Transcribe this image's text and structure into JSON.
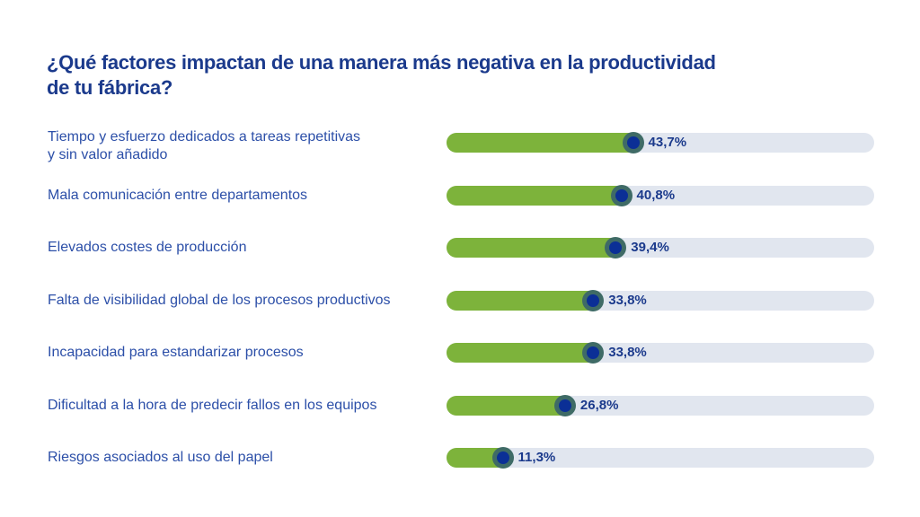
{
  "chart_data": {
    "type": "bar",
    "orientation": "horizontal",
    "title": "¿Qué factores impactan de una manera más negativa en la productividad de tu fábrica?",
    "title_lines": [
      "¿Qué factores impactan de una manera más negativa en la productividad",
      "de tu fábrica?"
    ],
    "categories": [
      "Tiempo y esfuerzo dedicados a tareas repetitivas y sin valor añadido",
      "Mala comunicación entre departamentos",
      "Elevados costes de producción",
      "Falta de visibilidad global de los procesos productivos",
      "Incapacidad para estandarizar procesos",
      "Dificultad a la hora de predecir fallos en los equipos",
      "Riesgos asociados al uso del papel"
    ],
    "category_lines": [
      [
        "Tiempo y esfuerzo dedicados a tareas repetitivas",
        "y sin valor añadido"
      ],
      [
        "Mala comunicación entre departamentos"
      ],
      [
        "Elevados costes de producción"
      ],
      [
        "Falta de visibilidad global de los procesos productivos"
      ],
      [
        "Incapacidad para estandarizar procesos"
      ],
      [
        "Dificultad a la hora de predecir fallos en los equipos"
      ],
      [
        "Riesgos asociados al uso del papel"
      ]
    ],
    "values": [
      43.7,
      40.8,
      39.4,
      33.8,
      33.8,
      26.8,
      11.3
    ],
    "value_labels": [
      "43,7%",
      "40,8%",
      "39,4%",
      "33,8%",
      "33,8%",
      "26,8%",
      "11,3%"
    ],
    "unit": "%",
    "xlim": [
      0,
      100
    ],
    "grid": false,
    "legend": "none",
    "colors": {
      "fill": "#7db33b",
      "track": "#e1e6ef",
      "marker": "#0b2f96",
      "marker_ring": "#3f6b66",
      "text": "#1b3a8c",
      "label": "#2c4fa8"
    }
  }
}
